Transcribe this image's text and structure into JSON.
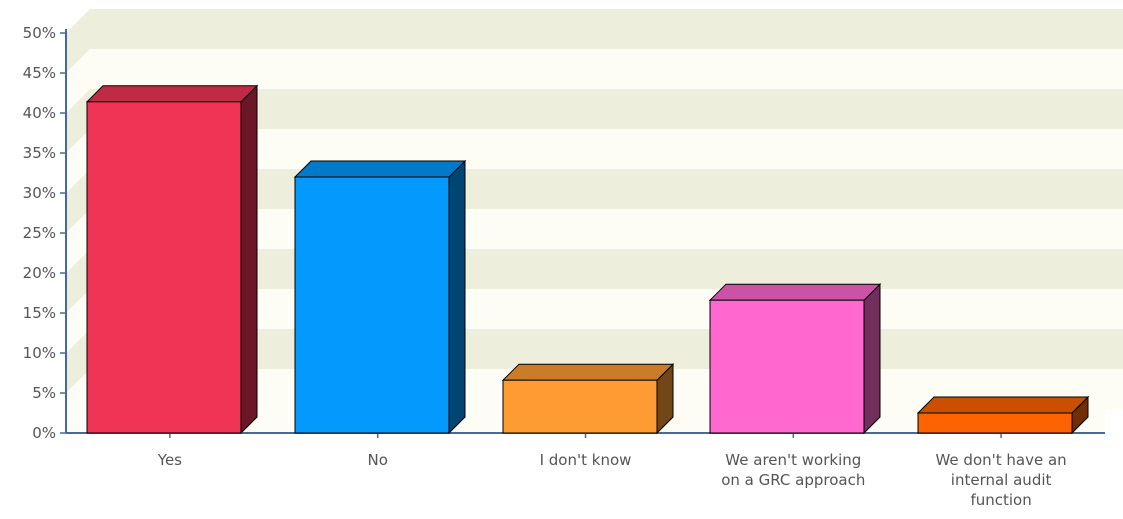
{
  "chart_data": {
    "type": "bar",
    "style": "3d",
    "title": "",
    "xlabel": "",
    "ylabel": "",
    "ylim": [
      0,
      50
    ],
    "y_ticks": [
      "0%",
      "5%",
      "10%",
      "15%",
      "20%",
      "25%",
      "30%",
      "35%",
      "40%",
      "45%",
      "50%"
    ],
    "grid": "alternating horizontal bands",
    "legend": "none",
    "categories": [
      [
        "Yes"
      ],
      [
        "No"
      ],
      [
        "I don't know"
      ],
      [
        "We aren't working",
        "on a GRC approach"
      ],
      [
        "We don't have an",
        "internal audit",
        "function"
      ]
    ],
    "values": [
      41.4,
      32.0,
      6.6,
      16.6,
      2.5
    ],
    "colors": [
      "#f03456",
      "#0399fd",
      "#fe9b33",
      "#fe68cf",
      "#fd6400"
    ],
    "band_colors": [
      "#fdfdf6",
      "#eeeedd"
    ],
    "axis_color": "#4a6a96"
  }
}
